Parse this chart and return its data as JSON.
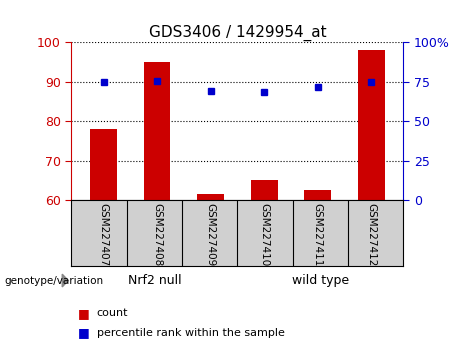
{
  "title": "GDS3406 / 1429954_at",
  "samples": [
    "GSM227407",
    "GSM227408",
    "GSM227409",
    "GSM227410",
    "GSM227411",
    "GSM227412"
  ],
  "red_values": [
    78.0,
    95.0,
    61.5,
    65.0,
    62.5,
    98.0
  ],
  "blue_pct_right": [
    75.0,
    75.5,
    69.5,
    68.5,
    72.0,
    75.0
  ],
  "ylim_left": [
    60,
    100
  ],
  "ylim_right": [
    0,
    100
  ],
  "yticks_left": [
    60,
    70,
    80,
    90,
    100
  ],
  "yticks_right": [
    0,
    25,
    50,
    75,
    100
  ],
  "ytick_labels_right": [
    "0",
    "25",
    "50",
    "75",
    "100%"
  ],
  "bar_color": "#cc0000",
  "dot_color": "#0000cc",
  "bar_width": 0.5,
  "group1_label": "Nrf2 null",
  "group2_label": "wild type",
  "group1_color": "#aaffaa",
  "group2_color": "#66ee66",
  "genotype_label": "genotype/variation",
  "legend_items": [
    "count",
    "percentile rank within the sample"
  ],
  "legend_colors": [
    "#cc0000",
    "#0000cc"
  ],
  "tick_label_color_left": "#cc0000",
  "tick_label_color_right": "#0000cc",
  "bg_color": "#ffffff",
  "sample_bg_color": "#d0d0d0"
}
